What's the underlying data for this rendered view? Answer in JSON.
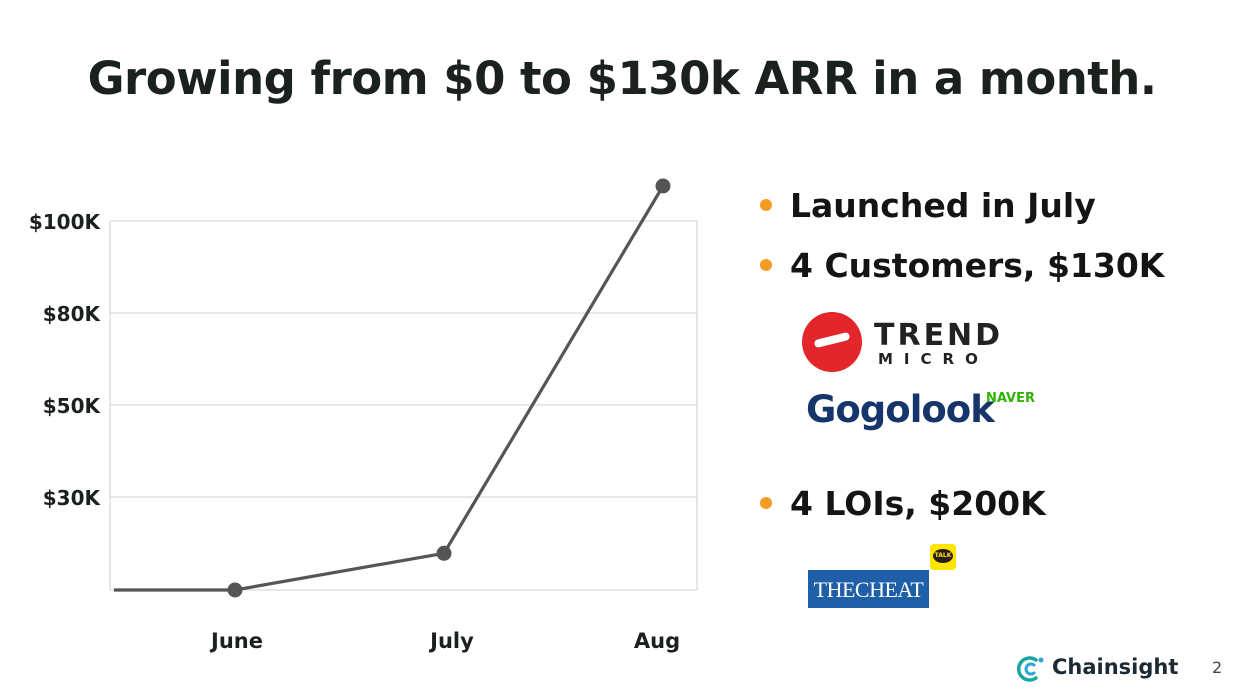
{
  "slide": {
    "title": "Growing from $0 to $130k ARR in a month.",
    "page_number": "2"
  },
  "bullets": [
    {
      "text": "Launched in July"
    },
    {
      "text": "4 Customers, $130K"
    },
    {
      "text": "4 LOIs, $200K"
    }
  ],
  "logos": {
    "trend_micro": {
      "line1": "TREND",
      "line2": "MICRO"
    },
    "gogolook": {
      "name": "Gogolook",
      "partner": "NAVER"
    },
    "thecheat": {
      "name": "THECHEAT",
      "badge": "TALK"
    }
  },
  "brand": {
    "name": "Chainsight"
  },
  "colors": {
    "bullet": "#f59a23",
    "line": "#555555",
    "grid": "#d9d9d9",
    "trend_red": "#e3262b",
    "gogolook_navy": "#16366b",
    "naver_green": "#2db400",
    "thecheat_blue": "#1f5fa8",
    "brand_teal": "#19a6a0"
  },
  "chart_data": {
    "type": "line",
    "title": "",
    "xlabel": "",
    "ylabel": "",
    "y_ticks": [
      "$100K",
      "$80K",
      "$50K",
      "$30K"
    ],
    "categories": [
      "June",
      "July",
      "Aug"
    ],
    "series": [
      {
        "x": [
          "",
          "June",
          "July",
          "Aug"
        ],
        "values": [
          0,
          0,
          10,
          110
        ]
      }
    ],
    "grid": true
  }
}
